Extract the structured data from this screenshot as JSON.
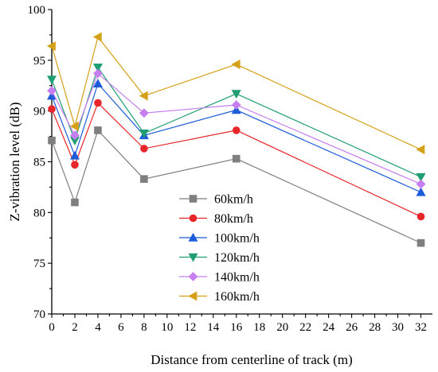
{
  "chart_data": {
    "type": "line",
    "xlabel": "Distance from centerline of track (m)",
    "ylabel": "Z-vibration level (dB)",
    "xlim": [
      0,
      33
    ],
    "ylim": [
      70,
      100
    ],
    "xticks": [
      0,
      2,
      4,
      6,
      8,
      10,
      12,
      14,
      16,
      18,
      20,
      22,
      24,
      26,
      28,
      30,
      32
    ],
    "yticks": [
      70,
      75,
      80,
      85,
      90,
      95,
      100
    ],
    "x": [
      0,
      2,
      4,
      8,
      16,
      32
    ],
    "legend_position": "lower-left",
    "grid": false,
    "series": [
      {
        "name": "60km/h",
        "color": "#7f7f7f",
        "marker": "square",
        "values": [
          87.1,
          81.0,
          88.1,
          83.3,
          85.3,
          77.0
        ]
      },
      {
        "name": "80km/h",
        "color": "#e8262a",
        "marker": "circle",
        "values": [
          90.2,
          84.7,
          90.8,
          86.3,
          88.1,
          79.6
        ]
      },
      {
        "name": "100km/h",
        "color": "#1c5bd9",
        "marker": "triangle-up",
        "values": [
          91.5,
          85.6,
          92.7,
          87.6,
          90.1,
          82.0
        ]
      },
      {
        "name": "120km/h",
        "color": "#1f9e73",
        "marker": "triangle-down",
        "values": [
          93.1,
          87.1,
          94.3,
          87.8,
          91.7,
          83.5
        ]
      },
      {
        "name": "140km/h",
        "color": "#c77ef0",
        "marker": "diamond",
        "values": [
          92.0,
          87.6,
          93.7,
          89.8,
          90.6,
          82.8
        ]
      },
      {
        "name": "160km/h",
        "color": "#d4a017",
        "marker": "triangle-left",
        "values": [
          96.4,
          88.5,
          97.3,
          91.5,
          94.6,
          86.2
        ]
      }
    ]
  }
}
